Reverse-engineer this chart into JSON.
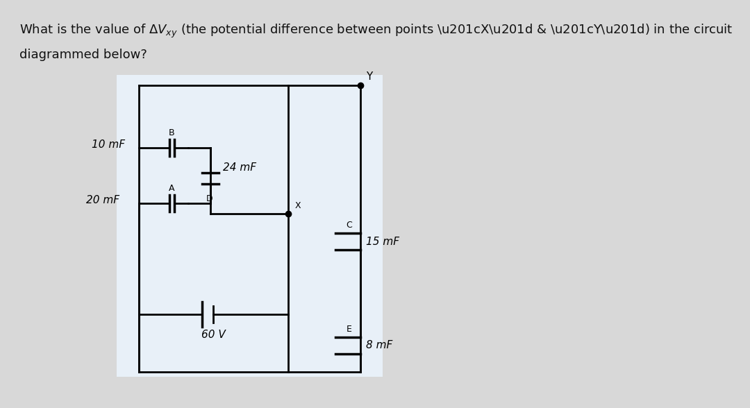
{
  "title_line1": "What is the value of ΔV",
  "title_xy": "xy",
  "title_line1_rest": " (the potential difference between points “X” & “Y”) in the circuit",
  "title_line2": "diagrammed below?",
  "bg_color": "#d8d8d8",
  "circuit_bg": "#e8f0f8",
  "line_color": "#000000",
  "label_10mF": "10 mF",
  "label_24mF": "24 mF",
  "label_20mF": "20 mF",
  "label_15mF": "15 mF",
  "label_60V": "60 V",
  "label_8mF": "8 mF",
  "node_B": "B",
  "node_D": "D",
  "node_A": "A",
  "node_C": "C",
  "node_E": "E",
  "node_X": "X",
  "node_Y": "Y"
}
